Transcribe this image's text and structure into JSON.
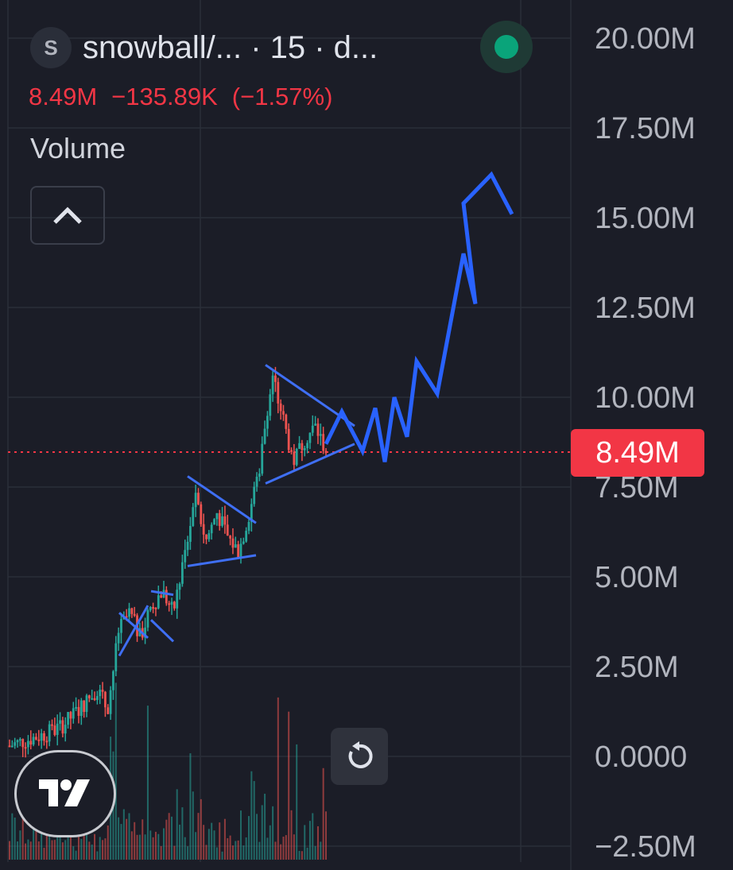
{
  "header": {
    "symbol_initial": "S",
    "title": "snowball/...  · 15 · d...",
    "status": "live-green-dot"
  },
  "price": {
    "last": "8.49M",
    "change": "−135.89K",
    "change_pct": "(−1.57%)",
    "color_down": "#f23645"
  },
  "indicator": {
    "label": "Volume"
  },
  "badge": {
    "value": "8.49M"
  },
  "icons": {
    "collapse": "chevron-up-icon",
    "reset": "reset-icon",
    "logo": "tradingview-logo"
  },
  "colors": {
    "background": "#1b1d27",
    "up": "#26a69a",
    "down": "#ef5350",
    "drawing": "#2962ff",
    "pattern_lines": "#3f6ff5"
  },
  "chart_data": {
    "type": "candlestick",
    "y_axis": {
      "ticks": [
        "20.00M",
        "17.50M",
        "15.00M",
        "12.50M",
        "10.00M",
        "7.50M",
        "5.00M",
        "2.50M",
        "0.0000",
        "−2.50M"
      ],
      "tick_values": [
        20,
        17.5,
        15,
        12.5,
        10,
        7.5,
        5,
        2.5,
        0,
        -2.5
      ],
      "unit": "M",
      "ylim": [
        -2.5,
        20
      ]
    },
    "current_price": 8.49,
    "price_path_approx_M": [
      0.3,
      0.4,
      0.5,
      0.6,
      0.7,
      0.9,
      1.2,
      1.5,
      1.9,
      1.3,
      3.5,
      4.0,
      3.3,
      4.2,
      4.6,
      4.0,
      5.5,
      7.2,
      6.0,
      6.8,
      6.1,
      5.7,
      6.8,
      8.2,
      10.6,
      9.5,
      8.2,
      8.8,
      9.2,
      8.5
    ],
    "projection_path_M": [
      8.7,
      9.6,
      8.5,
      9.7,
      8.2,
      10.0,
      8.9,
      11.0,
      10.1,
      11.1,
      9.8,
      14.0,
      12.6,
      15.4,
      16.2,
      15.1
    ],
    "patterns": [
      {
        "type": "pennant",
        "from_M": [
          4.0,
          2.8
        ],
        "to_M": [
          3.3,
          4.2
        ]
      },
      {
        "type": "flag",
        "from_M": [
          4.6,
          3.8
        ],
        "to_M": [
          4.5,
          3.2
        ]
      },
      {
        "type": "pennant",
        "from_M": [
          7.8,
          5.3
        ],
        "to_M": [
          6.5,
          5.6
        ]
      },
      {
        "type": "symmetrical-triangle",
        "from_M": [
          10.9,
          7.6
        ],
        "to_M": [
          9.2,
          8.7
        ]
      }
    ],
    "grid": true
  }
}
